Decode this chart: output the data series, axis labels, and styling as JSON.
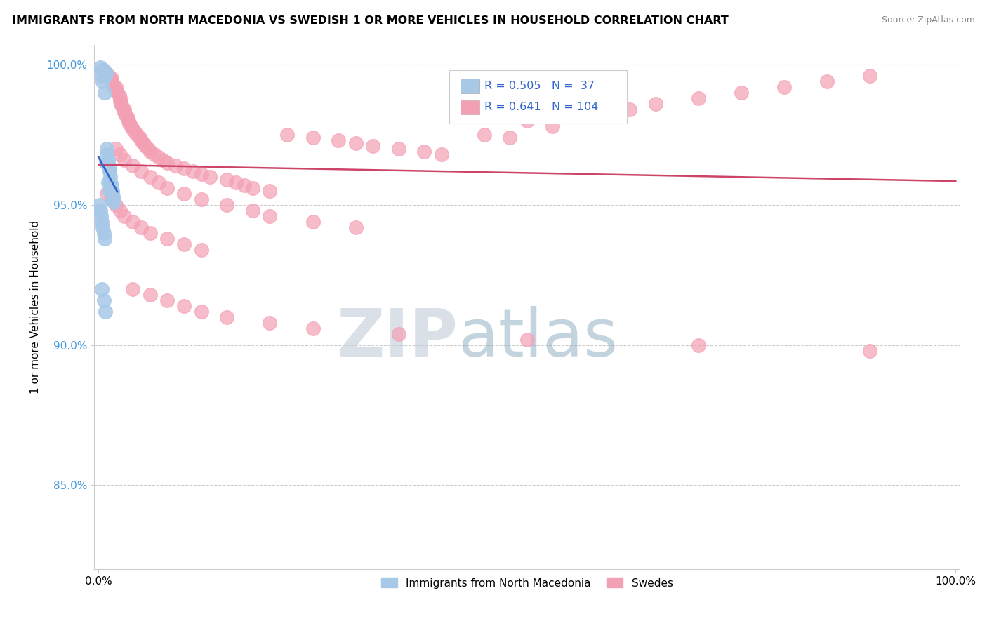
{
  "title": "IMMIGRANTS FROM NORTH MACEDONIA VS SWEDISH 1 OR MORE VEHICLES IN HOUSEHOLD CORRELATION CHART",
  "source": "Source: ZipAtlas.com",
  "ylabel": "1 or more Vehicles in Household",
  "r_blue": 0.505,
  "n_blue": 37,
  "r_pink": 0.641,
  "n_pink": 104,
  "blue_color": "#a8c8e8",
  "blue_edge_color": "#a8c8e8",
  "blue_line_color": "#3366cc",
  "pink_color": "#f4a0b4",
  "pink_edge_color": "#f4a0b4",
  "pink_line_color": "#cc4466",
  "legend_label_blue": "Immigrants from North Macedonia",
  "legend_label_pink": "Swedes",
  "ytick_color": "#4499dd",
  "watermark_zip_color": "#c8d8e8",
  "watermark_atlas_color": "#88aabb",
  "blue_x": [
    0.002,
    0.004,
    0.006,
    0.008,
    0.008,
    0.009,
    0.01,
    0.01,
    0.011,
    0.012,
    0.012,
    0.013,
    0.014,
    0.014,
    0.015,
    0.015,
    0.016,
    0.016,
    0.017,
    0.017,
    0.018,
    0.003,
    0.005,
    0.007,
    0.009,
    0.011,
    0.013,
    0.001,
    0.002,
    0.003,
    0.004,
    0.005,
    0.006,
    0.007,
    0.004,
    0.006,
    0.008
  ],
  "blue_y": [
    0.999,
    0.998,
    0.998,
    0.997,
    0.996,
    0.997,
    0.97,
    0.968,
    0.966,
    0.964,
    0.963,
    0.962,
    0.96,
    0.958,
    0.957,
    0.956,
    0.955,
    0.954,
    0.953,
    0.952,
    0.951,
    0.996,
    0.994,
    0.99,
    0.965,
    0.958,
    0.955,
    0.95,
    0.948,
    0.946,
    0.944,
    0.942,
    0.94,
    0.938,
    0.92,
    0.916,
    0.912
  ],
  "pink_x": [
    0.005,
    0.008,
    0.01,
    0.012,
    0.015,
    0.015,
    0.016,
    0.018,
    0.02,
    0.02,
    0.022,
    0.024,
    0.025,
    0.025,
    0.026,
    0.028,
    0.03,
    0.03,
    0.032,
    0.034,
    0.035,
    0.036,
    0.038,
    0.04,
    0.042,
    0.045,
    0.048,
    0.05,
    0.052,
    0.055,
    0.058,
    0.06,
    0.065,
    0.07,
    0.075,
    0.08,
    0.09,
    0.1,
    0.11,
    0.12,
    0.13,
    0.15,
    0.16,
    0.17,
    0.18,
    0.2,
    0.22,
    0.25,
    0.28,
    0.3,
    0.32,
    0.35,
    0.38,
    0.4,
    0.45,
    0.48,
    0.5,
    0.53,
    0.58,
    0.62,
    0.65,
    0.7,
    0.75,
    0.8,
    0.85,
    0.9,
    0.02,
    0.025,
    0.03,
    0.04,
    0.05,
    0.06,
    0.07,
    0.08,
    0.1,
    0.12,
    0.15,
    0.18,
    0.2,
    0.25,
    0.3,
    0.01,
    0.015,
    0.02,
    0.025,
    0.03,
    0.04,
    0.05,
    0.06,
    0.08,
    0.1,
    0.12,
    0.04,
    0.06,
    0.08,
    0.1,
    0.12,
    0.15,
    0.2,
    0.25,
    0.35,
    0.5,
    0.7,
    0.9
  ],
  "pink_y": [
    0.998,
    0.997,
    0.996,
    0.996,
    0.995,
    0.994,
    0.993,
    0.992,
    0.991,
    0.992,
    0.99,
    0.989,
    0.988,
    0.987,
    0.986,
    0.985,
    0.984,
    0.983,
    0.982,
    0.981,
    0.98,
    0.979,
    0.978,
    0.977,
    0.976,
    0.975,
    0.974,
    0.973,
    0.972,
    0.971,
    0.97,
    0.969,
    0.968,
    0.967,
    0.966,
    0.965,
    0.964,
    0.963,
    0.962,
    0.961,
    0.96,
    0.959,
    0.958,
    0.957,
    0.956,
    0.955,
    0.975,
    0.974,
    0.973,
    0.972,
    0.971,
    0.97,
    0.969,
    0.968,
    0.975,
    0.974,
    0.98,
    0.978,
    0.982,
    0.984,
    0.986,
    0.988,
    0.99,
    0.992,
    0.994,
    0.996,
    0.97,
    0.968,
    0.966,
    0.964,
    0.962,
    0.96,
    0.958,
    0.956,
    0.954,
    0.952,
    0.95,
    0.948,
    0.946,
    0.944,
    0.942,
    0.954,
    0.952,
    0.95,
    0.948,
    0.946,
    0.944,
    0.942,
    0.94,
    0.938,
    0.936,
    0.934,
    0.92,
    0.918,
    0.916,
    0.914,
    0.912,
    0.91,
    0.908,
    0.906,
    0.904,
    0.902,
    0.9,
    0.898
  ]
}
